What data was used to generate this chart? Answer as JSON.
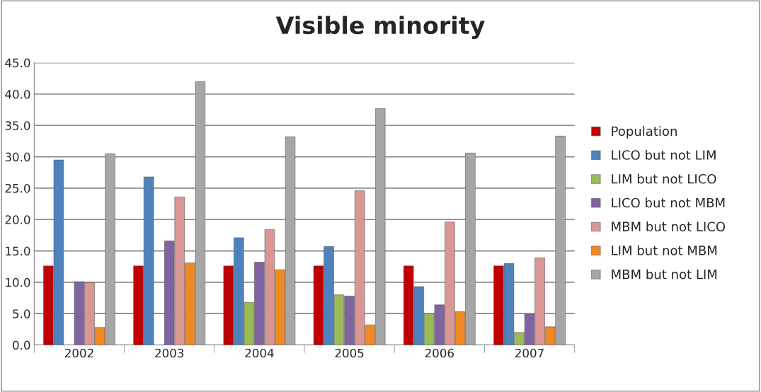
{
  "chart_data": {
    "type": "bar",
    "title": "Visible minority",
    "categories": [
      "2002",
      "2003",
      "2004",
      "2005",
      "2006",
      "2007"
    ],
    "series": [
      {
        "name": "Population",
        "color": "#c00000",
        "values": [
          12.6,
          12.6,
          12.6,
          12.6,
          12.6,
          12.6
        ]
      },
      {
        "name": "LICO but not LIM",
        "color": "#4f81bd",
        "values": [
          29.5,
          26.8,
          17.1,
          15.7,
          9.3,
          13.0
        ]
      },
      {
        "name": "LIM but not LICO",
        "color": "#9bbb59",
        "values": [
          null,
          null,
          6.8,
          8.0,
          5.0,
          2.0
        ]
      },
      {
        "name": "LICO but not MBM",
        "color": "#8064a2",
        "values": [
          10.1,
          16.6,
          13.2,
          7.8,
          6.4,
          4.9
        ]
      },
      {
        "name": "MBM but not LICO",
        "color": "#d99694",
        "values": [
          9.9,
          23.6,
          18.4,
          24.6,
          19.6,
          13.9
        ]
      },
      {
        "name": "LIM but not MBM",
        "color": "#f08a24",
        "values": [
          2.8,
          13.1,
          12.0,
          3.2,
          5.3,
          2.9
        ]
      },
      {
        "name": "MBM but not LIM",
        "color": "#a6a6a6",
        "values": [
          30.5,
          42.0,
          33.2,
          37.7,
          30.6,
          33.3
        ]
      }
    ],
    "ylim": [
      0,
      45
    ],
    "yticks": [
      {
        "value": 0,
        "label": "0.0"
      },
      {
        "value": 5,
        "label": "5.0"
      },
      {
        "value": 10,
        "label": "10.0"
      },
      {
        "value": 15,
        "label": "15.0"
      },
      {
        "value": 20,
        "label": "20.0"
      },
      {
        "value": 25,
        "label": "25.0"
      },
      {
        "value": 30,
        "label": "30.0"
      },
      {
        "value": 35,
        "label": "35.0"
      },
      {
        "value": 40,
        "label": "40.0"
      },
      {
        "value": 45,
        "label": "45.0"
      }
    ],
    "grid": "y",
    "legend": "right"
  }
}
